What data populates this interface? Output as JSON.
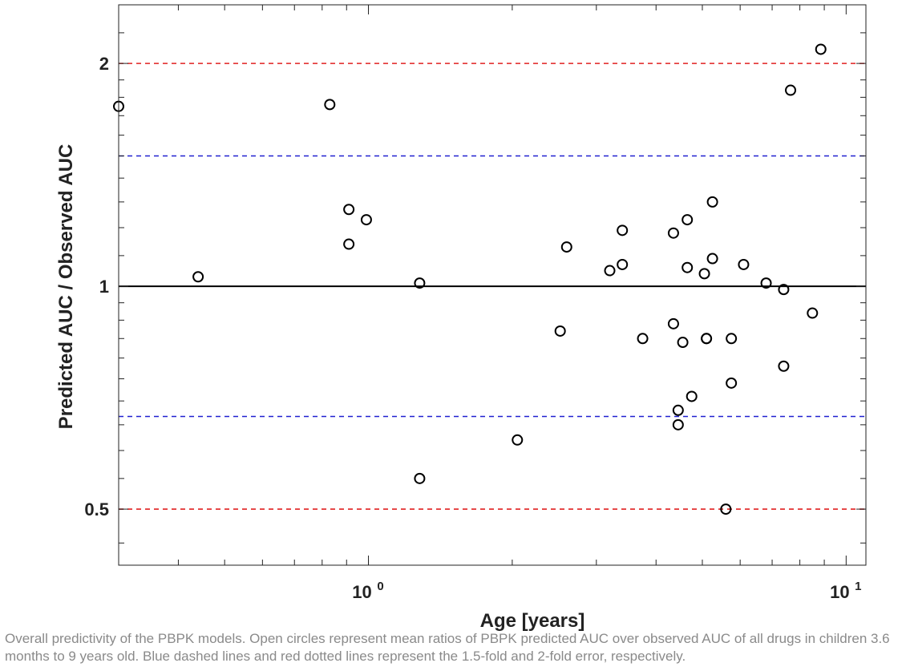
{
  "chart_data": {
    "type": "scatter",
    "xlabel": "Age [years]",
    "ylabel": "Predicted AUC / Observed AUC",
    "xscale": "log",
    "yscale": "log",
    "xlim": [
      0.3,
      11
    ],
    "ylim": [
      0.42,
      2.4
    ],
    "grid": false,
    "xticks": [
      {
        "value": 1,
        "base": "10",
        "exp": "0"
      },
      {
        "value": 10,
        "base": "10",
        "exp": "1"
      }
    ],
    "yticks": [
      {
        "value": 0.5,
        "label": "0.5"
      },
      {
        "value": 1,
        "label": "1"
      },
      {
        "value": 2,
        "label": "2"
      }
    ],
    "reference_lines": [
      {
        "y": 2,
        "style": "dashed",
        "color": "#e02020"
      },
      {
        "y": 1.5,
        "style": "dashed",
        "color": "#2020d0"
      },
      {
        "y": 1,
        "style": "solid",
        "color": "#000000"
      },
      {
        "y": 0.667,
        "style": "dashed",
        "color": "#2020d0"
      },
      {
        "y": 0.5,
        "style": "dashed",
        "color": "#e02020"
      }
    ],
    "points": [
      {
        "x": 0.3,
        "y": 1.75
      },
      {
        "x": 0.44,
        "y": 1.03
      },
      {
        "x": 0.83,
        "y": 1.76
      },
      {
        "x": 0.91,
        "y": 1.27
      },
      {
        "x": 0.91,
        "y": 1.14
      },
      {
        "x": 0.99,
        "y": 1.23
      },
      {
        "x": 1.28,
        "y": 1.01
      },
      {
        "x": 2.05,
        "y": 0.62
      },
      {
        "x": 1.28,
        "y": 0.55
      },
      {
        "x": 2.52,
        "y": 0.87
      },
      {
        "x": 2.6,
        "y": 1.13
      },
      {
        "x": 3.2,
        "y": 1.05
      },
      {
        "x": 3.4,
        "y": 1.19
      },
      {
        "x": 3.4,
        "y": 1.07
      },
      {
        "x": 3.75,
        "y": 0.85
      },
      {
        "x": 4.35,
        "y": 1.18
      },
      {
        "x": 4.35,
        "y": 0.89
      },
      {
        "x": 4.45,
        "y": 0.68
      },
      {
        "x": 4.45,
        "y": 0.65
      },
      {
        "x": 4.55,
        "y": 0.84
      },
      {
        "x": 4.65,
        "y": 1.23
      },
      {
        "x": 4.65,
        "y": 1.06
      },
      {
        "x": 4.75,
        "y": 0.71
      },
      {
        "x": 5.05,
        "y": 1.04
      },
      {
        "x": 5.1,
        "y": 0.85
      },
      {
        "x": 5.1,
        "y": 0.85
      },
      {
        "x": 5.25,
        "y": 1.3
      },
      {
        "x": 5.25,
        "y": 1.09
      },
      {
        "x": 5.6,
        "y": 0.5
      },
      {
        "x": 5.75,
        "y": 0.85
      },
      {
        "x": 5.75,
        "y": 0.74
      },
      {
        "x": 6.1,
        "y": 1.07
      },
      {
        "x": 6.8,
        "y": 1.01
      },
      {
        "x": 7.4,
        "y": 0.99
      },
      {
        "x": 7.4,
        "y": 0.78
      },
      {
        "x": 7.65,
        "y": 1.84
      },
      {
        "x": 8.5,
        "y": 0.92
      },
      {
        "x": 8.85,
        "y": 2.09
      }
    ]
  },
  "caption": "Overall predictivity of the PBPK models. Open circles represent mean ratios of PBPK predicted AUC over observed AUC of all drugs in children 3.6 months to 9 years old. Blue dashed lines and red dotted lines represent the 1.5-fold and 2-fold error, respectively."
}
